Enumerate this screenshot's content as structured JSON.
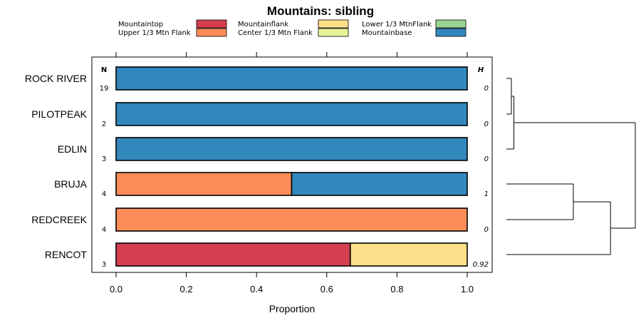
{
  "chart_data": {
    "type": "bar",
    "stacked": true,
    "orientation": "horizontal",
    "title": "Mountains: sibling",
    "xlabel": "Proportion",
    "ylabel": "",
    "xlim": [
      0,
      1
    ],
    "xticks": [
      "0.0",
      "0.2",
      "0.4",
      "0.6",
      "0.8",
      "1.0"
    ],
    "xtick_values": [
      0,
      0.2,
      0.4,
      0.6,
      0.8,
      1.0
    ],
    "n_header": "N",
    "h_header": "H",
    "legend": [
      {
        "name": "Mountaintop",
        "color": "#d53e4f"
      },
      {
        "name": "Upper 1/3 Mtn Flank",
        "color": "#fc8d59"
      },
      {
        "name": "Mountainflank",
        "color": "#fee08b"
      },
      {
        "name": "Center 1/3 Mtn Flank",
        "color": "#e6f598"
      },
      {
        "name": "Lower 1/3 MtnFlank",
        "color": "#99d594"
      },
      {
        "name": "Mountainbase",
        "color": "#3288bd"
      }
    ],
    "categories": [
      "ROCK RIVER",
      "PILOTPEAK",
      "EDLIN",
      "BRUJA",
      "REDCREEK",
      "RENCOT"
    ],
    "n_values": [
      "19",
      "2",
      "3",
      "4",
      "4",
      "3"
    ],
    "h_values": [
      "0",
      "0",
      "0",
      "1",
      "0",
      "0.92"
    ],
    "series": [
      {
        "name": "Mountaintop",
        "values": [
          0,
          0,
          0,
          0,
          0,
          0.667
        ]
      },
      {
        "name": "Upper 1/3 Mtn Flank",
        "values": [
          0,
          0,
          0,
          0.5,
          1.0,
          0
        ]
      },
      {
        "name": "Mountainflank",
        "values": [
          0,
          0,
          0,
          0,
          0,
          0.333
        ]
      },
      {
        "name": "Center 1/3 Mtn Flank",
        "values": [
          0,
          0,
          0,
          0,
          0,
          0
        ]
      },
      {
        "name": "Lower 1/3 MtnFlank",
        "values": [
          0,
          0,
          0,
          0,
          0,
          0
        ]
      },
      {
        "name": "Mountainbase",
        "values": [
          1.0,
          1.0,
          1.0,
          0.5,
          0,
          0
        ]
      }
    ],
    "dendrogram": {
      "merges": [
        {
          "a": 0,
          "b": 1,
          "height": 0.0
        },
        {
          "a": "m0",
          "b": 2,
          "height": 0.02
        },
        {
          "a": 3,
          "b": 4,
          "height": 0.5
        },
        {
          "a": "m2",
          "b": 5,
          "height": 0.8
        },
        {
          "a": "m1",
          "b": "m3",
          "height": 1.0
        }
      ]
    }
  }
}
